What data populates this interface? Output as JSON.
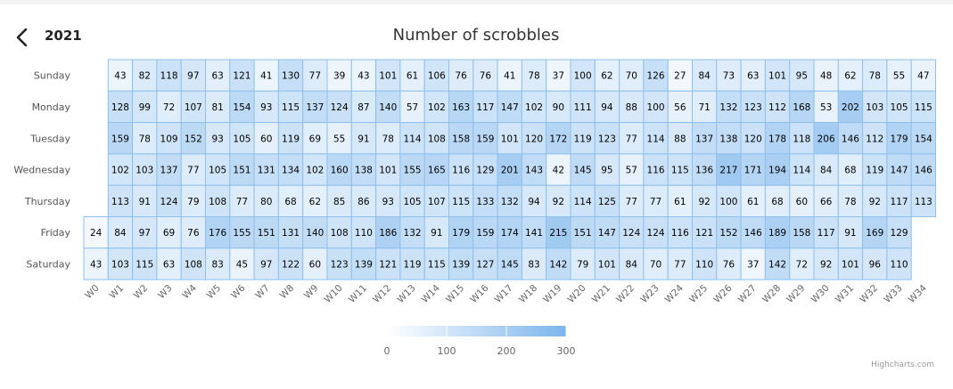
{
  "header": {
    "year": "2021"
  },
  "credits": "Highcharts.com",
  "chart_data": {
    "type": "heatmap",
    "title": "Number of scrobbles",
    "rows": [
      "Sunday",
      "Monday",
      "Tuesday",
      "Wednesday",
      "Thursday",
      "Friday",
      "Saturday"
    ],
    "columns": [
      "W0",
      "W1",
      "W2",
      "W3",
      "W4",
      "W5",
      "W6",
      "W7",
      "W8",
      "W9",
      "W10",
      "W11",
      "W12",
      "W13",
      "W14",
      "W15",
      "W16",
      "W17",
      "W18",
      "W19",
      "W20",
      "W21",
      "W22",
      "W23",
      "W24",
      "W25",
      "W26",
      "W27",
      "W28",
      "W29",
      "W30",
      "W31",
      "W32",
      "W33",
      "W34"
    ],
    "values": [
      [
        null,
        43,
        82,
        118,
        97,
        63,
        121,
        41,
        130,
        77,
        39,
        43,
        101,
        61,
        106,
        76,
        76,
        41,
        78,
        37,
        100,
        62,
        70,
        126,
        27,
        84,
        73,
        63,
        101,
        95,
        48,
        62,
        78,
        55,
        47
      ],
      [
        null,
        128,
        99,
        72,
        107,
        81,
        154,
        93,
        115,
        137,
        124,
        87,
        140,
        57,
        102,
        163,
        117,
        147,
        102,
        90,
        111,
        94,
        88,
        100,
        56,
        71,
        132,
        123,
        112,
        168,
        53,
        202,
        103,
        105,
        115
      ],
      [
        null,
        159,
        78,
        109,
        152,
        93,
        105,
        60,
        119,
        69,
        55,
        91,
        78,
        114,
        108,
        158,
        159,
        101,
        120,
        172,
        119,
        123,
        77,
        114,
        88,
        137,
        138,
        120,
        178,
        118,
        206,
        146,
        112,
        179,
        154
      ],
      [
        null,
        102,
        103,
        137,
        77,
        105,
        151,
        131,
        134,
        102,
        160,
        138,
        101,
        155,
        165,
        116,
        129,
        201,
        143,
        42,
        145,
        95,
        57,
        116,
        115,
        136,
        217,
        171,
        194,
        114,
        84,
        68,
        119,
        147,
        146
      ],
      [
        null,
        113,
        91,
        124,
        79,
        108,
        77,
        80,
        68,
        62,
        85,
        86,
        93,
        105,
        107,
        115,
        133,
        132,
        94,
        92,
        114,
        125,
        77,
        77,
        61,
        92,
        100,
        61,
        68,
        60,
        66,
        78,
        92,
        117,
        113
      ],
      [
        24,
        84,
        97,
        69,
        76,
        176,
        155,
        151,
        131,
        140,
        108,
        110,
        186,
        132,
        91,
        179,
        159,
        174,
        141,
        215,
        151,
        147,
        124,
        124,
        116,
        121,
        152,
        146,
        189,
        158,
        117,
        91,
        169,
        129,
        null
      ],
      [
        43,
        103,
        115,
        63,
        108,
        83,
        45,
        97,
        122,
        60,
        123,
        139,
        121,
        119,
        115,
        139,
        127,
        145,
        83,
        142,
        79,
        101,
        84,
        70,
        77,
        110,
        76,
        37,
        142,
        72,
        92,
        101,
        96,
        110,
        null
      ]
    ],
    "color_axis": {
      "min": 0,
      "max": 300,
      "min_color": "#ffffff",
      "max_color": "#7cb5ec",
      "ticks": [
        0,
        100,
        200,
        300
      ]
    },
    "grid": false,
    "legend": "bottom-center"
  }
}
